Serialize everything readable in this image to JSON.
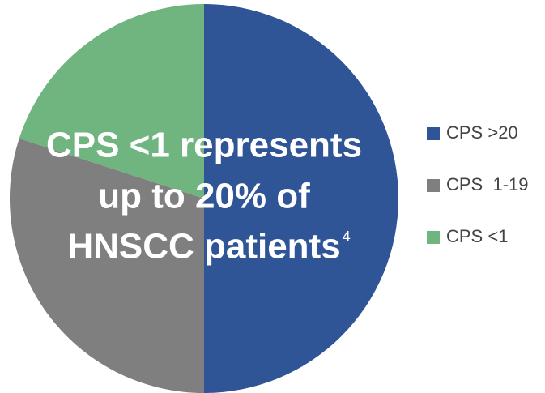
{
  "chart_data": {
    "type": "pie",
    "categories": [
      "CPS >20",
      "CPS  1-19",
      "CPS <1"
    ],
    "values": [
      50,
      30,
      20
    ],
    "colors": [
      "#2f5597",
      "#7f7f7f",
      "#70b47f"
    ],
    "legend": "right",
    "annotation": {
      "lines": [
        "CPS <1 represents",
        "up to 20% of",
        "HNSCC patients"
      ],
      "superscript": "4"
    }
  }
}
